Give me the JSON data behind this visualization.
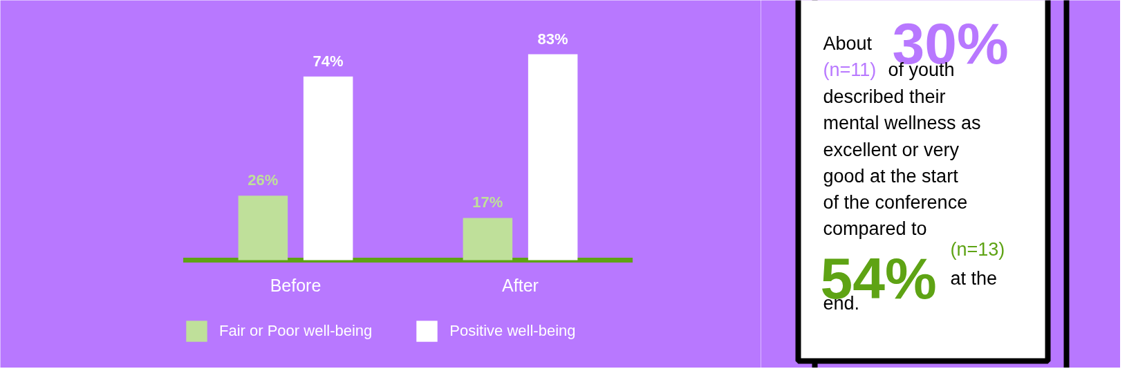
{
  "chart_data": [
    {
      "type": "bar",
      "categories": [
        "Before",
        "After"
      ],
      "series": [
        {
          "name": "Fair or Poor well-being",
          "color": "#bfe09a",
          "values": [
            26,
            17
          ],
          "value_labels": [
            "26%",
            "17%"
          ]
        },
        {
          "name": "Positive well-being",
          "color": "#ffffff",
          "values": [
            74,
            83
          ],
          "value_labels": [
            "74%",
            "83%"
          ]
        }
      ],
      "legend": "bottom"
    },
    {
      "type": "other",
      "annotations": [
        "About",
        "30%",
        "(n=11)",
        "of youth",
        "described their",
        "mental wellness as",
        "excellent or very",
        "good at the start",
        "of the conference",
        "compared to",
        "54%",
        "(n=13)",
        "at the",
        "end."
      ]
    }
  ]
}
